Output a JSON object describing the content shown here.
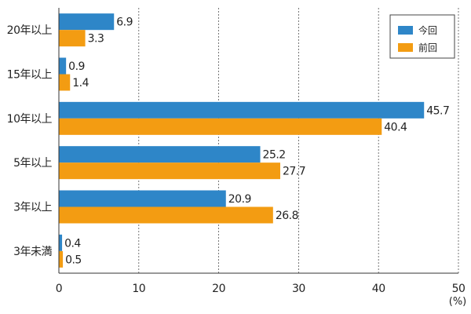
{
  "chart_data": {
    "type": "bar",
    "orientation": "horizontal",
    "categories": [
      "20年以上",
      "15年以上",
      "10年以上",
      "5年以上",
      "3年以上",
      "3年未満"
    ],
    "series": [
      {
        "name": "今回",
        "color": "#2e86c8",
        "values": [
          6.9,
          0.9,
          45.7,
          25.2,
          20.9,
          0.4
        ],
        "labels": [
          "6.9",
          "0.9",
          "45.7",
          "25.2",
          "20.9",
          "0.4"
        ]
      },
      {
        "name": "前回",
        "color": "#f39c12",
        "values": [
          3.3,
          1.4,
          40.4,
          27.7,
          26.8,
          0.5
        ],
        "labels": [
          "3.3",
          "1.4",
          "40.4",
          "27.7",
          "26.8",
          "0.5"
        ]
      }
    ],
    "x_ticks": [
      "0",
      "10",
      "20",
      "30",
      "40",
      "50"
    ],
    "xlim": [
      0,
      50
    ],
    "x_unit": "(%)",
    "grid": "vertical-dashed",
    "legend_position": "top-right"
  }
}
